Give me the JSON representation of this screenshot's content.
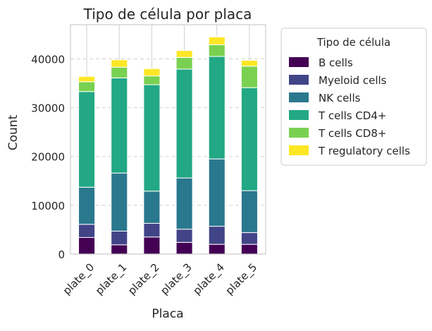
{
  "chart_data": {
    "type": "bar",
    "stacked": true,
    "title": "Tipo de célula por placa",
    "xlabel": "Placa",
    "ylabel": "Count",
    "categories": [
      "plate_0",
      "plate_1",
      "plate_2",
      "plate_3",
      "plate_4",
      "plate_5"
    ],
    "ylim": [
      0,
      47000
    ],
    "yticks": [
      0,
      10000,
      20000,
      30000,
      40000
    ],
    "ytick_labels": [
      "0",
      "10000",
      "20000",
      "30000",
      "40000"
    ],
    "grid": true,
    "legend": {
      "title": "Tipo de célula",
      "placement": "outside-right"
    },
    "series": [
      {
        "name": "B cells",
        "color": "#440154",
        "values": [
          3400,
          1900,
          3500,
          2400,
          2000,
          2000
        ]
      },
      {
        "name": "Myeloid cells",
        "color": "#414487",
        "values": [
          2700,
          2800,
          2800,
          2700,
          3700,
          2400
        ]
      },
      {
        "name": "NK cells",
        "color": "#2a788e",
        "values": [
          7600,
          11900,
          6600,
          10500,
          13800,
          8600
        ]
      },
      {
        "name": "T cells CD4+",
        "color": "#22a884",
        "values": [
          19600,
          19500,
          21800,
          22300,
          21000,
          21100
        ]
      },
      {
        "name": "T cells CD8+",
        "color": "#7ad151",
        "values": [
          2000,
          2200,
          1800,
          2400,
          2400,
          4400
        ]
      },
      {
        "name": "T regulatory cells",
        "color": "#fde725",
        "values": [
          1100,
          1500,
          1500,
          1400,
          1600,
          1200
        ]
      }
    ]
  }
}
